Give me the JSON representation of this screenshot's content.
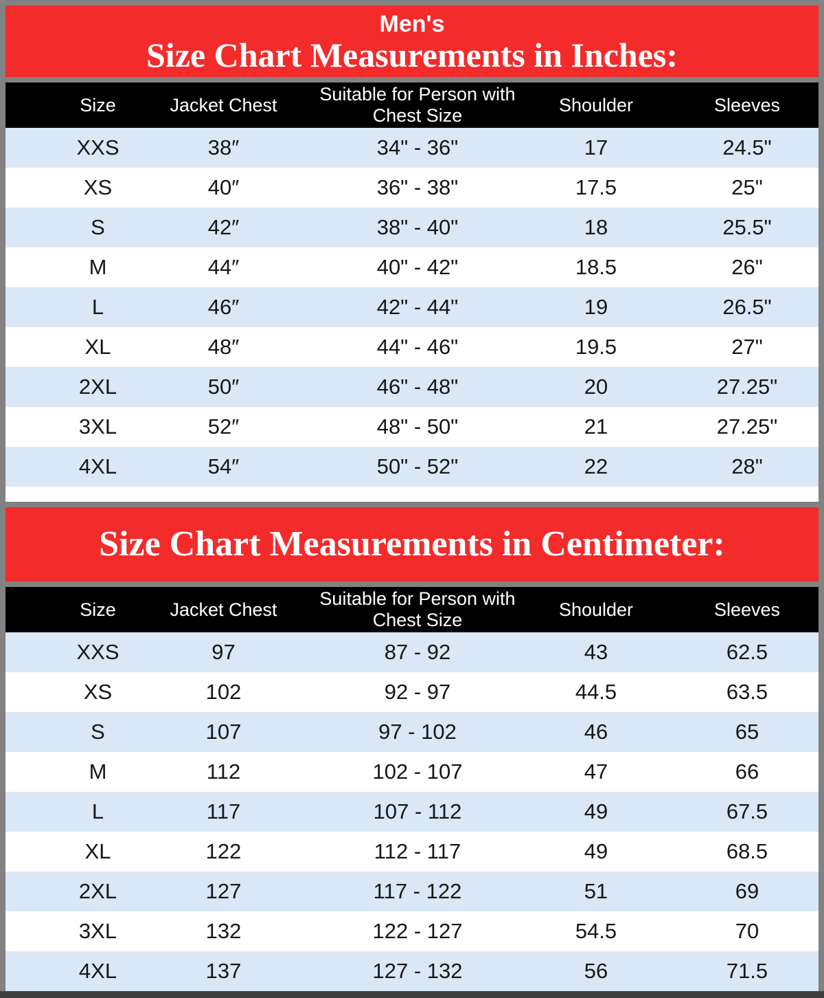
{
  "colors": {
    "banner_red": "#f32b2b",
    "header_bg": "#000000",
    "row_stripe_blue": "#d9e7f6",
    "row_stripe_white": "#ffffff",
    "frame_gray": "#828282",
    "bottom_bar_dark": "#3f3f3f"
  },
  "banner_inches": {
    "line1": "Men's",
    "line2": "Size Chart Measurements in Inches:"
  },
  "banner_cm": {
    "title": "Size Chart Measurements in Centimeter:"
  },
  "chart_data": [
    {
      "type": "table",
      "title": "Men's Size Chart Measurements in Inches:",
      "columns": [
        "Size",
        "Jacket Chest",
        "Suitable for Person with Chest Size",
        "Shoulder",
        "Sleeves"
      ],
      "rows": [
        [
          "XXS",
          "38″",
          "34\" - 36\"",
          "17",
          "24.5\""
        ],
        [
          "XS",
          "40″",
          "36\" - 38\"",
          "17.5",
          "25\""
        ],
        [
          "S",
          "42″",
          "38\" - 40\"",
          "18",
          "25.5\""
        ],
        [
          "M",
          "44″",
          "40\" - 42\"",
          "18.5",
          "26\""
        ],
        [
          "L",
          "46″",
          "42\" - 44\"",
          "19",
          "26.5\""
        ],
        [
          "XL",
          "48″",
          "44\" - 46\"",
          "19.5",
          "27\""
        ],
        [
          "2XL",
          "50″",
          "46\" - 48\"",
          "20",
          "27.25\""
        ],
        [
          "3XL",
          "52″",
          "48\" - 50\"",
          "21",
          "27.25\""
        ],
        [
          "4XL",
          "54″",
          "50\" - 52\"",
          "22",
          "28\""
        ]
      ]
    },
    {
      "type": "table",
      "title": "Size Chart Measurements in Centimeter:",
      "columns": [
        "Size",
        "Jacket Chest",
        "Suitable for Person with Chest Size",
        "Shoulder",
        "Sleeves"
      ],
      "rows": [
        [
          "XXS",
          "97",
          "87 - 92",
          "43",
          "62.5"
        ],
        [
          "XS",
          "102",
          "92 - 97",
          "44.5",
          "63.5"
        ],
        [
          "S",
          "107",
          "97 - 102",
          "46",
          "65"
        ],
        [
          "M",
          "112",
          "102 - 107",
          "47",
          "66"
        ],
        [
          "L",
          "117",
          "107 - 112",
          "49",
          "67.5"
        ],
        [
          "XL",
          "122",
          "112 - 117",
          "49",
          "68.5"
        ],
        [
          "2XL",
          "127",
          "117 - 122",
          "51",
          "69"
        ],
        [
          "3XL",
          "132",
          "122 - 127",
          "54.5",
          "70"
        ],
        [
          "4XL",
          "137",
          "127 - 132",
          "56",
          "71.5"
        ]
      ]
    }
  ]
}
